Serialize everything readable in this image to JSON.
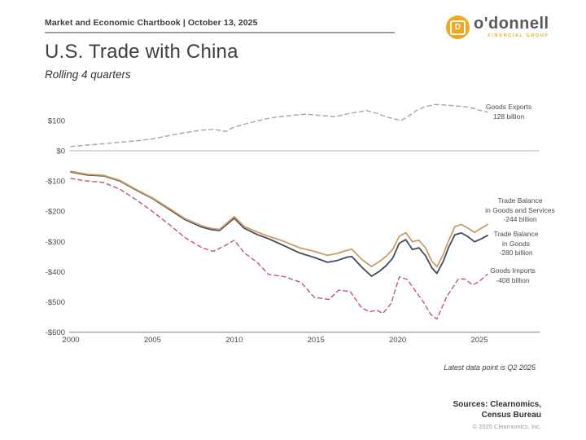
{
  "header": {
    "chartbook_title": "Market and Economic Chartbook | October 13, 2025"
  },
  "logo": {
    "mark_letter": "D",
    "name": "o'donnell",
    "tagline": "FINANCIAL GROUP",
    "accent_color": "#F2A71F"
  },
  "title": "U.S. Trade with China",
  "subtitle": "Rolling 4 quarters",
  "chart_data": {
    "type": "line",
    "title": "U.S. Trade with China",
    "subtitle": "Rolling 4 quarters",
    "x_axis": {
      "ticks": [
        2000,
        2005,
        2010,
        2015,
        2020,
        2025
      ],
      "labels": [
        "2000",
        "2005",
        "2010",
        "2015",
        "2020",
        "2025"
      ],
      "range": [
        2000,
        2025.5
      ]
    },
    "y_axis": {
      "unit": "billions of dollars",
      "ticks": [
        100,
        0,
        -100,
        -200,
        -300,
        -400,
        -500,
        -600
      ],
      "labels": [
        "$100",
        "$0",
        "-$100",
        "-$200",
        "-$300",
        "-$400",
        "-$500",
        "-$600"
      ],
      "range": [
        -600,
        130
      ],
      "zero_line": true
    },
    "series": [
      {
        "name": "Goods Exports",
        "latest_label": "128 billion",
        "color": "#92AFA9",
        "style": "dashed",
        "points": [
          [
            2000,
            14
          ],
          [
            2001,
            19
          ],
          [
            2002,
            23
          ],
          [
            2003,
            28
          ],
          [
            2004,
            33
          ],
          [
            2005,
            39
          ],
          [
            2006,
            50
          ],
          [
            2007,
            60
          ],
          [
            2008,
            68
          ],
          [
            2008.7,
            71
          ],
          [
            2009.5,
            64
          ],
          [
            2010,
            79
          ],
          [
            2010.7,
            89
          ],
          [
            2011.5,
            100
          ],
          [
            2012.2,
            108
          ],
          [
            2013,
            114
          ],
          [
            2013.8,
            118
          ],
          [
            2014.4,
            121
          ],
          [
            2015.2,
            117
          ],
          [
            2016.2,
            113
          ],
          [
            2017,
            123
          ],
          [
            2018.1,
            133
          ],
          [
            2018.7,
            124
          ],
          [
            2019.3,
            112
          ],
          [
            2019.8,
            105
          ],
          [
            2020.2,
            100
          ],
          [
            2020.7,
            116
          ],
          [
            2021.2,
            135
          ],
          [
            2021.7,
            146
          ],
          [
            2022.3,
            153
          ],
          [
            2023,
            151
          ],
          [
            2023.6,
            148
          ],
          [
            2024.1,
            146
          ],
          [
            2024.6,
            141
          ],
          [
            2025,
            134
          ],
          [
            2025.5,
            128
          ]
        ]
      },
      {
        "name": "Trade Balance in Goods",
        "latest_label": "-280 billion",
        "color": "#3D4D5E",
        "style": "solid",
        "points": [
          [
            2000,
            -70
          ],
          [
            2001,
            -80
          ],
          [
            2002,
            -83
          ],
          [
            2003,
            -100
          ],
          [
            2004,
            -130
          ],
          [
            2005,
            -158
          ],
          [
            2006,
            -193
          ],
          [
            2007,
            -228
          ],
          [
            2008,
            -252
          ],
          [
            2008.6,
            -261
          ],
          [
            2009.1,
            -264
          ],
          [
            2010,
            -223
          ],
          [
            2010.6,
            -256
          ],
          [
            2011.4,
            -277
          ],
          [
            2012.1,
            -291
          ],
          [
            2013,
            -313
          ],
          [
            2014,
            -338
          ],
          [
            2014.9,
            -353
          ],
          [
            2015.7,
            -369
          ],
          [
            2016.3,
            -363
          ],
          [
            2016.9,
            -352
          ],
          [
            2017.2,
            -350
          ],
          [
            2017.8,
            -385
          ],
          [
            2018.4,
            -415
          ],
          [
            2018.9,
            -398
          ],
          [
            2019.3,
            -380
          ],
          [
            2019.7,
            -355
          ],
          [
            2020.1,
            -306
          ],
          [
            2020.5,
            -294
          ],
          [
            2020.9,
            -327
          ],
          [
            2021.3,
            -321
          ],
          [
            2021.7,
            -347
          ],
          [
            2022.1,
            -388
          ],
          [
            2022.4,
            -406
          ],
          [
            2022.8,
            -365
          ],
          [
            2023.1,
            -322
          ],
          [
            2023.5,
            -278
          ],
          [
            2023.9,
            -272
          ],
          [
            2024.3,
            -284
          ],
          [
            2024.7,
            -301
          ],
          [
            2025.1,
            -292
          ],
          [
            2025.5,
            -280
          ]
        ]
      },
      {
        "name": "Trade Balance in Goods and Services",
        "latest_label": "-244 billion",
        "color": "#CF9A63",
        "style": "solid",
        "points": [
          [
            2000,
            -68
          ],
          [
            2001,
            -78
          ],
          [
            2002,
            -81
          ],
          [
            2003,
            -98
          ],
          [
            2004,
            -128
          ],
          [
            2005,
            -156
          ],
          [
            2006,
            -190
          ],
          [
            2007,
            -225
          ],
          [
            2008,
            -248
          ],
          [
            2008.6,
            -257
          ],
          [
            2009.1,
            -260
          ],
          [
            2010,
            -218
          ],
          [
            2010.6,
            -250
          ],
          [
            2011.4,
            -269
          ],
          [
            2012.1,
            -283
          ],
          [
            2013,
            -299
          ],
          [
            2014,
            -321
          ],
          [
            2014.9,
            -333
          ],
          [
            2015.7,
            -346
          ],
          [
            2016.3,
            -340
          ],
          [
            2016.9,
            -329
          ],
          [
            2017.2,
            -326
          ],
          [
            2017.8,
            -359
          ],
          [
            2018.4,
            -383
          ],
          [
            2018.9,
            -366
          ],
          [
            2019.3,
            -349
          ],
          [
            2019.7,
            -326
          ],
          [
            2020.1,
            -283
          ],
          [
            2020.5,
            -271
          ],
          [
            2020.9,
            -301
          ],
          [
            2021.3,
            -296
          ],
          [
            2021.7,
            -321
          ],
          [
            2022.1,
            -366
          ],
          [
            2022.4,
            -384
          ],
          [
            2022.8,
            -342
          ],
          [
            2023.1,
            -300
          ],
          [
            2023.5,
            -251
          ],
          [
            2023.9,
            -244
          ],
          [
            2024.3,
            -256
          ],
          [
            2024.7,
            -270
          ],
          [
            2025.1,
            -257
          ],
          [
            2025.5,
            -244
          ]
        ]
      },
      {
        "name": "Goods Imports",
        "latest_label": "-408 billion",
        "color": "#C4566A",
        "style": "dashed",
        "points": [
          [
            2000,
            -92
          ],
          [
            2001,
            -100
          ],
          [
            2002,
            -105
          ],
          [
            2003,
            -127
          ],
          [
            2004,
            -162
          ],
          [
            2005,
            -201
          ],
          [
            2006,
            -243
          ],
          [
            2007,
            -288
          ],
          [
            2008,
            -320
          ],
          [
            2008.7,
            -333
          ],
          [
            2009.4,
            -315
          ],
          [
            2010,
            -296
          ],
          [
            2010.6,
            -337
          ],
          [
            2011.4,
            -369
          ],
          [
            2012.1,
            -409
          ],
          [
            2013.1,
            -417
          ],
          [
            2014.1,
            -436
          ],
          [
            2014.9,
            -485
          ],
          [
            2015.8,
            -492
          ],
          [
            2016.4,
            -461
          ],
          [
            2017.1,
            -466
          ],
          [
            2017.8,
            -520
          ],
          [
            2018.3,
            -533
          ],
          [
            2018.7,
            -527
          ],
          [
            2019.1,
            -538
          ],
          [
            2019.6,
            -505
          ],
          [
            2020.1,
            -417
          ],
          [
            2020.6,
            -426
          ],
          [
            2021.1,
            -465
          ],
          [
            2021.6,
            -502
          ],
          [
            2022,
            -540
          ],
          [
            2022.4,
            -557
          ],
          [
            2023,
            -483
          ],
          [
            2023.7,
            -425
          ],
          [
            2024.1,
            -424
          ],
          [
            2024.6,
            -444
          ],
          [
            2025,
            -432
          ],
          [
            2025.5,
            -408
          ]
        ]
      }
    ],
    "legend_position": "right-annotations",
    "grid": "zero-line-only"
  },
  "annotations": {
    "exports": {
      "l1": "Goods Exports",
      "l2": "128 billion"
    },
    "gs": {
      "l1": "Trade Balance",
      "l2": "in Goods and Services",
      "l3": "-244 billion"
    },
    "goods": {
      "l1": "Trade Balance",
      "l2": "in Goods",
      "l3": "-280 billion"
    },
    "imports": {
      "l1": "Goods Imports",
      "l2": "-408 billion"
    }
  },
  "footnote": "Latest data point is Q2 2025",
  "sources": {
    "line1": "Sources: Clearnomics,",
    "line2": "Census Bureau",
    "copyright": "© 2025 Clearnomics, Inc."
  }
}
